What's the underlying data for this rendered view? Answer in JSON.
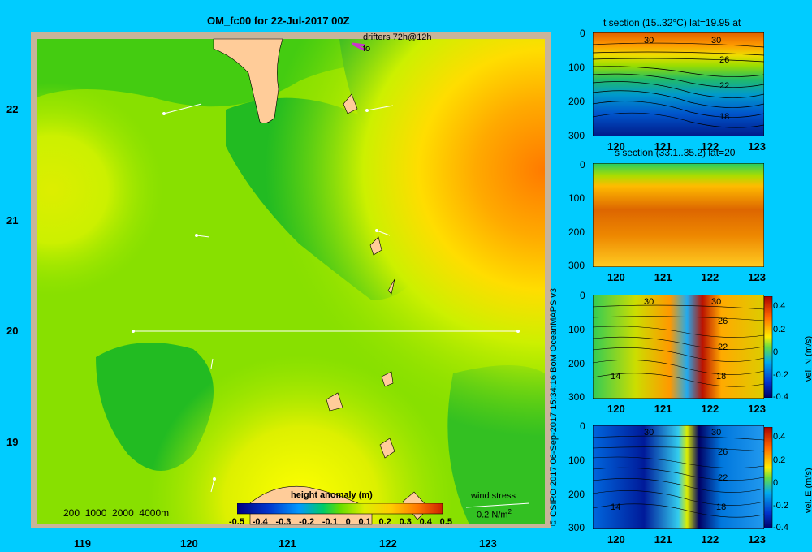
{
  "main_map": {
    "title": "OM_fc00 for 22-Jul-2017 00Z",
    "lon_ticks": [
      "119",
      "120",
      "121",
      "122",
      "123"
    ],
    "lat_ticks": [
      "22",
      "21",
      "20",
      "19"
    ],
    "drifters_label": "drifters 72h@12h",
    "drifters_to": "to",
    "depth_legend": "200  1000  2000  4000m",
    "wind_label": "wind stress",
    "wind_value": "0.2 N/m",
    "wind_exp": "2",
    "colorbar": {
      "title": "height anomaly (m)",
      "ticks": [
        "-0.5",
        "-0.4",
        "-0.3",
        "-0.2",
        "-0.1",
        "0",
        "0.1",
        "0.2",
        "0.3",
        "0.4",
        "0.5"
      ]
    }
  },
  "credit": "© CSIRO 2017  06-Sep-2017 15:34:16 BoM OceanMAPS v3",
  "panels": [
    {
      "title": "t section (15..32°C) lat=19.95 at",
      "contour_labels": [
        "30",
        "30",
        "26",
        "22",
        "18"
      ],
      "colorbar": null
    },
    {
      "title": "s section (33.1..35.2) lat=20",
      "contour_labels": [],
      "colorbar": null
    },
    {
      "title": "",
      "contour_labels": [
        "30",
        "30",
        "26",
        "22",
        "18",
        "14"
      ],
      "colorbar": {
        "label": "vel. N (m/s)",
        "ticks": [
          "0.4",
          "0.2",
          "0",
          "-0.2",
          "-0.4"
        ]
      }
    },
    {
      "title": "",
      "contour_labels": [
        "30",
        "30",
        "26",
        "22",
        "18",
        "14"
      ],
      "colorbar": {
        "label": "vel. E (m/s)",
        "ticks": [
          "0.4",
          "0.2",
          "0",
          "-0.2",
          "-0.4"
        ]
      }
    }
  ],
  "panel_axes": {
    "x_ticks": [
      "120",
      "121",
      "122",
      "123"
    ],
    "y_ticks": [
      "0",
      "100",
      "200",
      "300"
    ]
  },
  "colors": {
    "background": "#00ccff",
    "land": "#ffcc99",
    "frame": "#c8b49a",
    "high": "#ff8800",
    "low": "#00bb33"
  }
}
